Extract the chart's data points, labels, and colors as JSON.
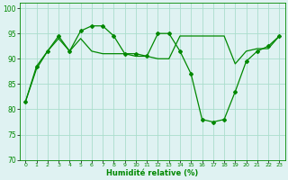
{
  "line1_x": [
    0,
    1,
    2,
    3,
    4,
    5,
    6,
    7,
    8,
    9,
    10,
    11,
    12,
    13,
    14,
    15,
    16,
    17,
    18,
    19,
    20,
    21,
    22,
    23
  ],
  "line1_y": [
    81.5,
    88.5,
    91.5,
    94.5,
    91.5,
    95.5,
    96.5,
    96.5,
    94.5,
    91.0,
    91.0,
    90.5,
    95.0,
    95.0,
    91.5,
    87.0,
    78.0,
    77.5,
    78.0,
    83.5,
    89.5,
    91.5,
    92.5,
    94.5
  ],
  "line2_x": [
    0,
    1,
    2,
    3,
    4,
    5,
    6,
    7,
    8,
    9,
    10,
    11,
    12,
    13,
    14,
    15,
    16,
    17,
    18,
    19,
    20,
    21,
    22,
    23
  ],
  "line2_y": [
    81.5,
    88.0,
    91.5,
    94.0,
    91.5,
    94.0,
    91.5,
    91.0,
    91.0,
    91.0,
    90.5,
    90.5,
    90.0,
    90.0,
    94.5,
    94.5,
    94.5,
    94.5,
    94.5,
    89.0,
    91.5,
    92.0,
    92.0,
    94.5
  ],
  "line_color": "#008800",
  "bg_color": "#dff2f2",
  "grid_color": "#aaddcc",
  "xlabel": "Humidité relative (%)",
  "ylim": [
    70,
    101
  ],
  "xlim": [
    -0.5,
    23.5
  ],
  "yticks": [
    70,
    75,
    80,
    85,
    90,
    95,
    100
  ],
  "xticks": [
    0,
    1,
    2,
    3,
    4,
    5,
    6,
    7,
    8,
    9,
    10,
    11,
    12,
    13,
    14,
    15,
    16,
    17,
    18,
    19,
    20,
    21,
    22,
    23
  ]
}
